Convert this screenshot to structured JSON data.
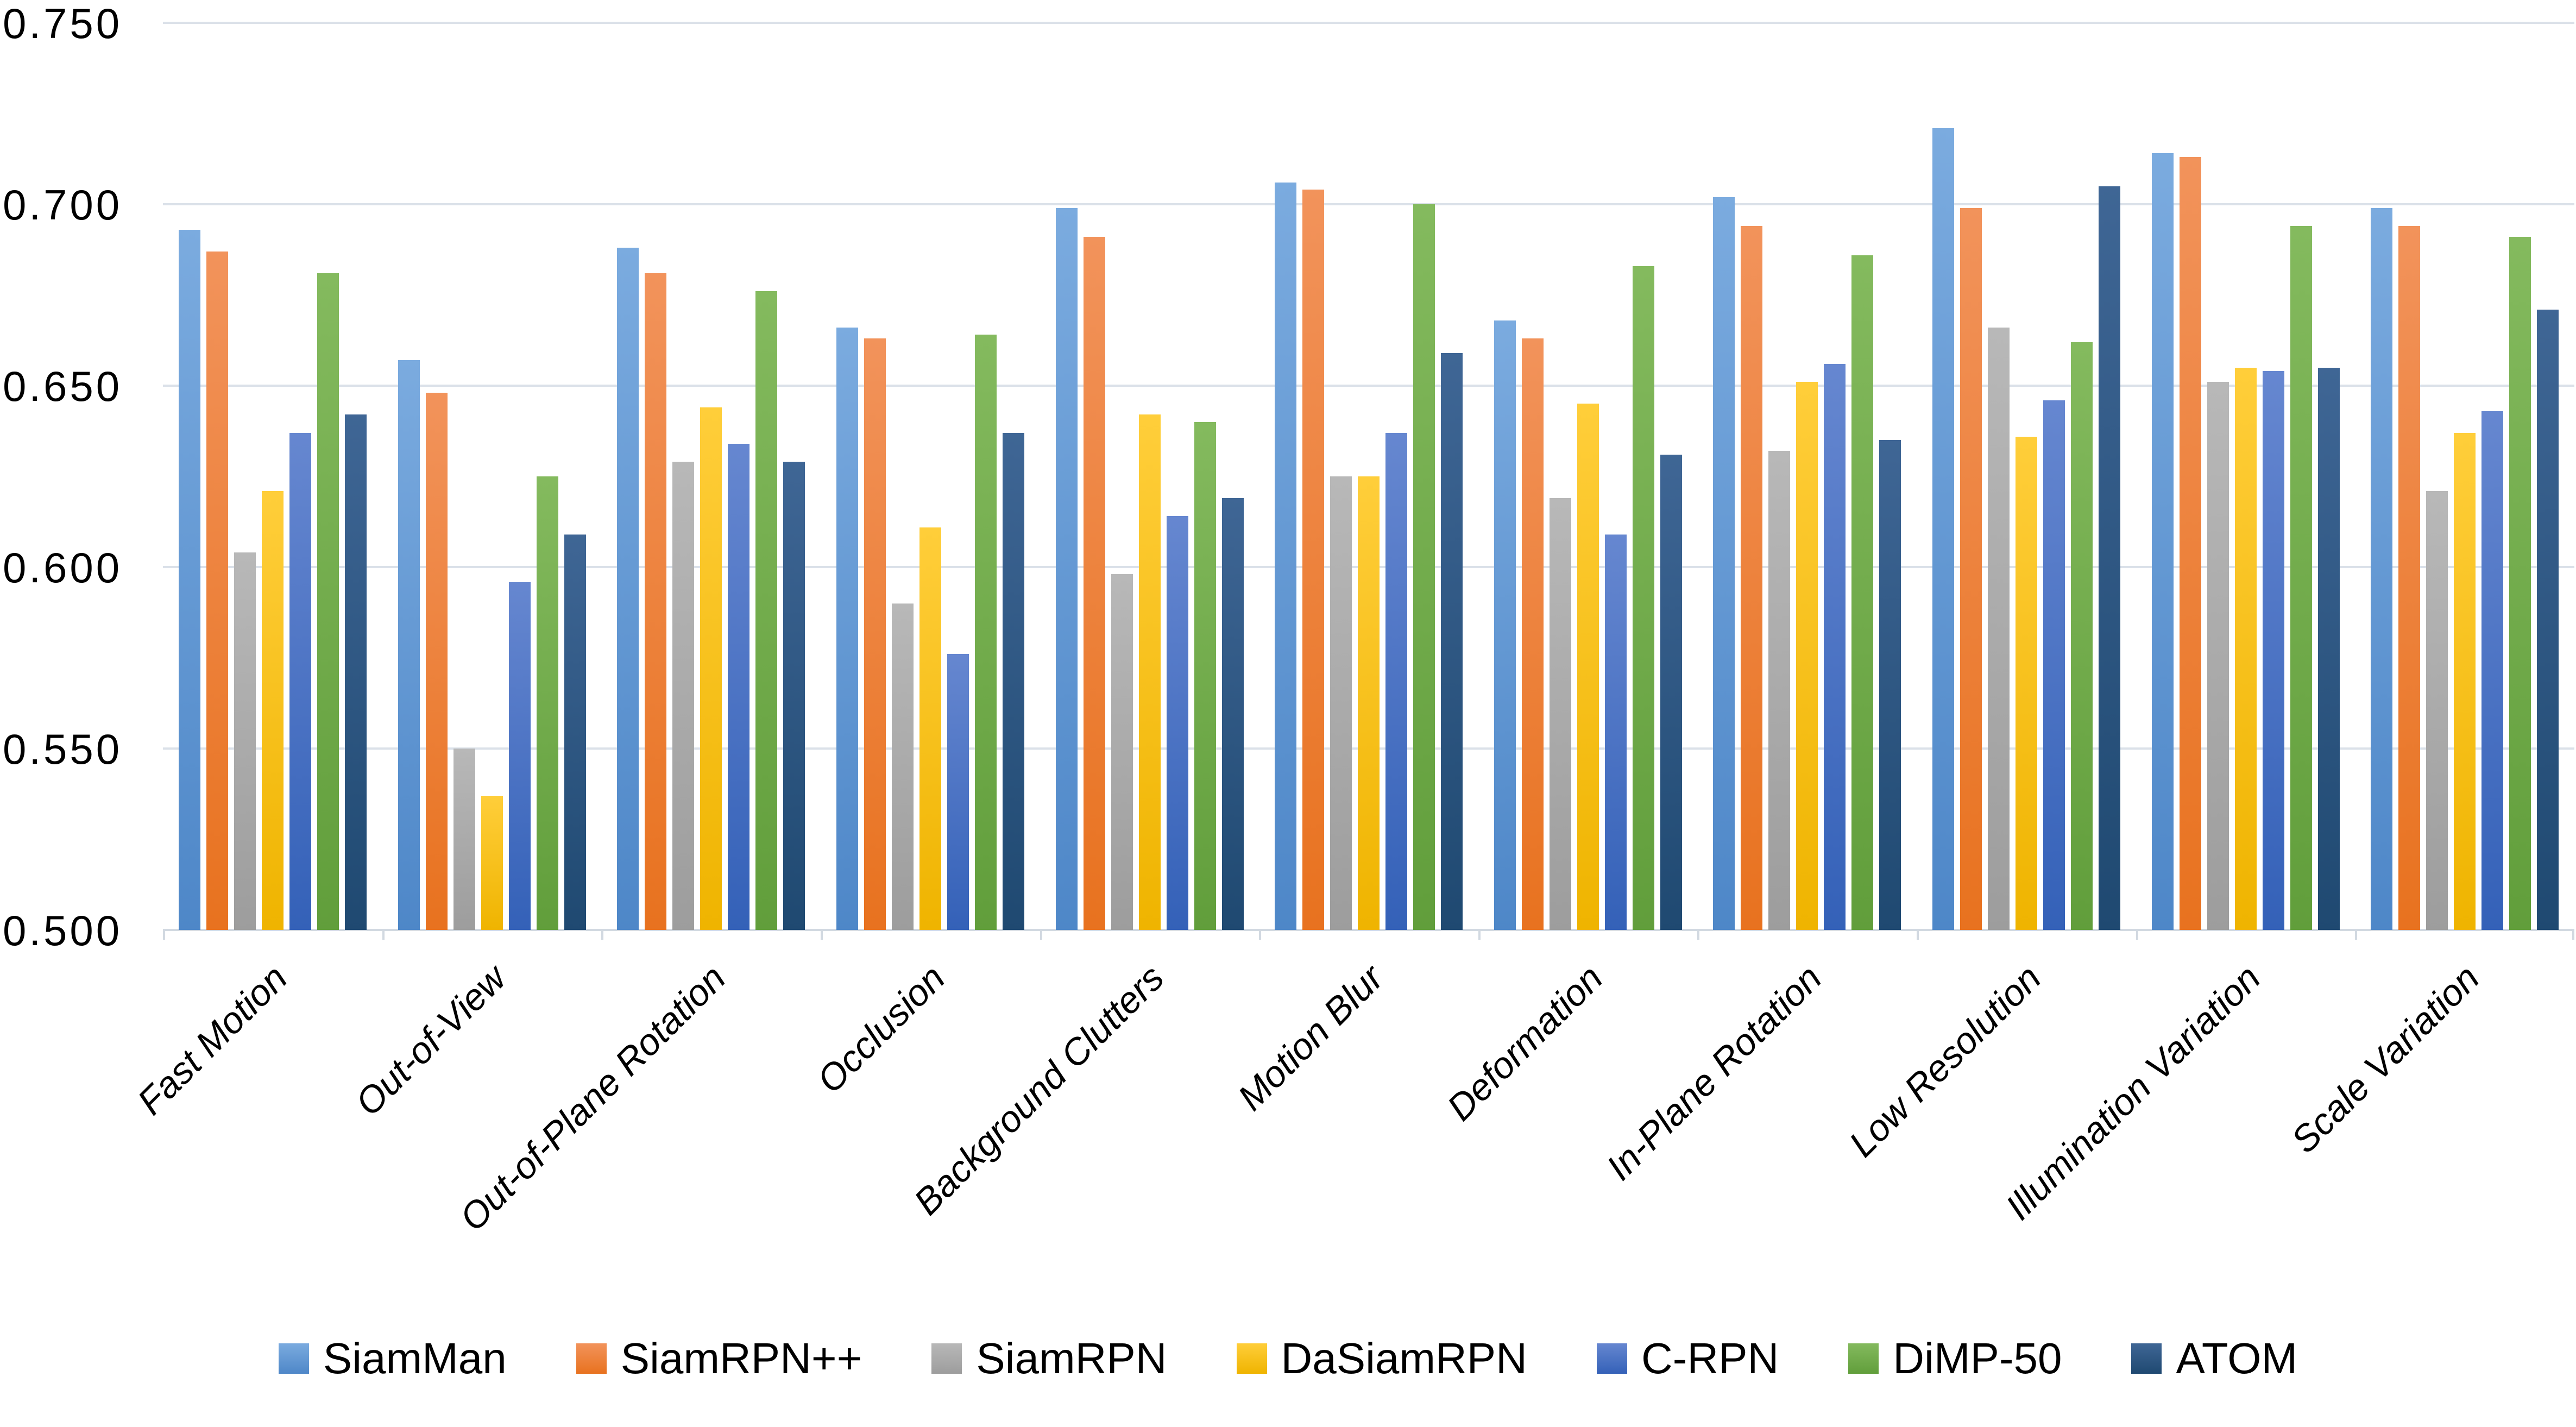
{
  "chart_data": {
    "type": "bar",
    "title": "",
    "xlabel": "",
    "ylabel": "",
    "grid": true,
    "legend_position": "bottom",
    "y_axis": {
      "min": 0.5,
      "max": 0.75,
      "step": 0.05,
      "tick_labels": [
        "0.750",
        "0.700",
        "0.650",
        "0.600",
        "0.550",
        "0.500"
      ]
    },
    "categories": [
      "Fast Motion",
      "Out-of-View",
      "Out-of-Plane Rotation",
      "Occlusion",
      "Background Clutters",
      "Motion Blur",
      "Deformation",
      "In-Plane Rotation",
      "Low Resolution",
      "Illumination Variation",
      "Scale Variation"
    ],
    "series": [
      {
        "name": "SiamMan",
        "color": "#4E87C8",
        "color_light": "#7BABDF",
        "values": [
          0.693,
          0.657,
          0.688,
          0.666,
          0.699,
          0.706,
          0.668,
          0.702,
          0.721,
          0.714,
          0.699
        ]
      },
      {
        "name": "SiamRPN++",
        "color": "#E8721F",
        "color_light": "#F2935B",
        "values": [
          0.687,
          0.648,
          0.681,
          0.663,
          0.691,
          0.704,
          0.663,
          0.694,
          0.699,
          0.713,
          0.694
        ]
      },
      {
        "name": "SiamRPN",
        "color": "#9D9D9D",
        "color_light": "#B8B8B8",
        "values": [
          0.604,
          0.55,
          0.629,
          0.59,
          0.598,
          0.625,
          0.619,
          0.632,
          0.666,
          0.651,
          0.621
        ]
      },
      {
        "name": "DaSiamRPN",
        "color": "#EFB400",
        "color_light": "#FFCE3A",
        "values": [
          0.621,
          0.537,
          0.644,
          0.611,
          0.642,
          0.625,
          0.645,
          0.651,
          0.636,
          0.655,
          0.637
        ]
      },
      {
        "name": "C-RPN",
        "color": "#3461B8",
        "color_light": "#6687D0",
        "values": [
          0.637,
          0.596,
          0.634,
          0.576,
          0.614,
          0.637,
          0.609,
          0.656,
          0.646,
          0.654,
          0.643
        ]
      },
      {
        "name": "DiMP-50",
        "color": "#619E3B",
        "color_light": "#84BA5E",
        "values": [
          0.681,
          0.625,
          0.676,
          0.664,
          0.64,
          0.7,
          0.683,
          0.686,
          0.662,
          0.694,
          0.691
        ]
      },
      {
        "name": "ATOM",
        "color": "#1F4971",
        "color_light": "#3F6695",
        "values": [
          0.642,
          0.609,
          0.629,
          0.637,
          0.619,
          0.659,
          0.631,
          0.635,
          0.705,
          0.655,
          0.671
        ]
      }
    ]
  }
}
